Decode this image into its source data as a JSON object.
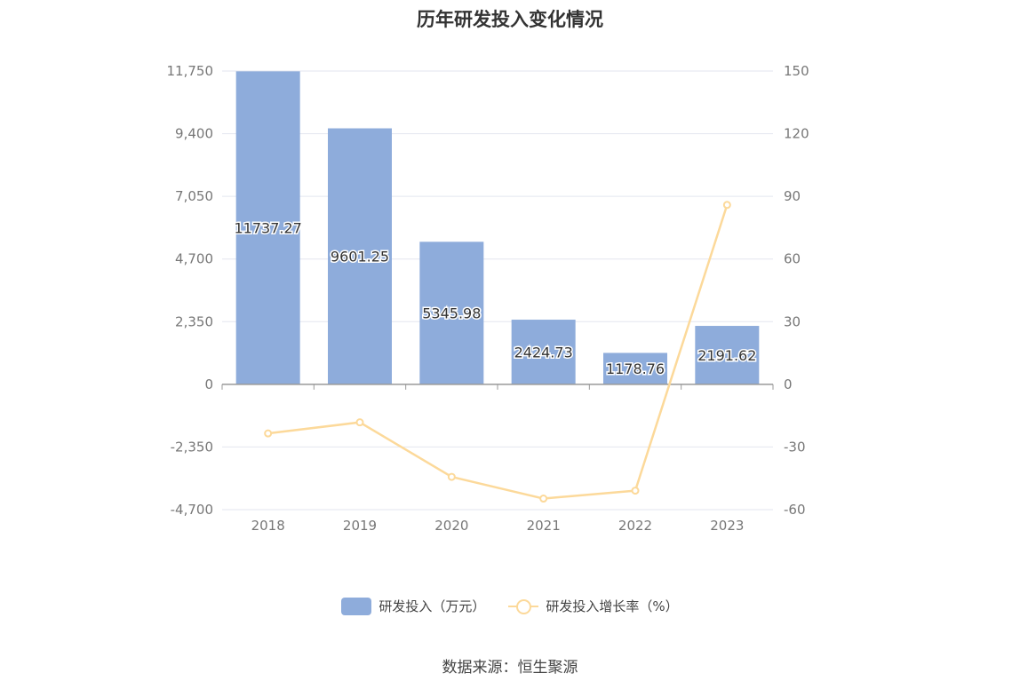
{
  "title": "历年研发投入变化情况",
  "source": "数据来源：恒生聚源",
  "colors": {
    "bar": "#8eacdb",
    "line": "#fcd99a",
    "grid": "#e3e6ef",
    "axis": "#999999",
    "tick": "#777777"
  },
  "chart_data": {
    "type": "bar+line",
    "title": "历年研发投入变化情况",
    "categories": [
      "2018",
      "2019",
      "2020",
      "2021",
      "2022",
      "2023"
    ],
    "series": [
      {
        "name": "研发投入（万元）",
        "type": "bar",
        "axis": "left",
        "values": [
          11737.27,
          9601.25,
          5345.98,
          2424.73,
          1178.76,
          2191.62
        ],
        "labels": [
          "11737.27",
          "9601.25",
          "5345.98",
          "2424.73",
          "1178.76",
          "2191.62"
        ]
      },
      {
        "name": "研发投入增长率（%）",
        "type": "line",
        "axis": "right",
        "values": [
          -23.5,
          -18.2,
          -44.3,
          -54.7,
          -50.9,
          85.9
        ]
      }
    ],
    "y_left": {
      "ylim": [
        -4700,
        11750
      ],
      "ticks": [
        -4700,
        -2350,
        0,
        2350,
        4700,
        7050,
        9400,
        11750
      ],
      "tick_labels": [
        "-4,700",
        "-2,350",
        "0",
        "2,350",
        "4,700",
        "7,050",
        "9,400",
        "11,750"
      ]
    },
    "y_right": {
      "ylim": [
        -60,
        150
      ],
      "ticks": [
        -60,
        -30,
        0,
        30,
        60,
        90,
        120,
        150
      ],
      "tick_labels": [
        "-60",
        "-30",
        "0",
        "30",
        "60",
        "90",
        "120",
        "150"
      ]
    },
    "grid": true,
    "legend_position": "bottom"
  }
}
